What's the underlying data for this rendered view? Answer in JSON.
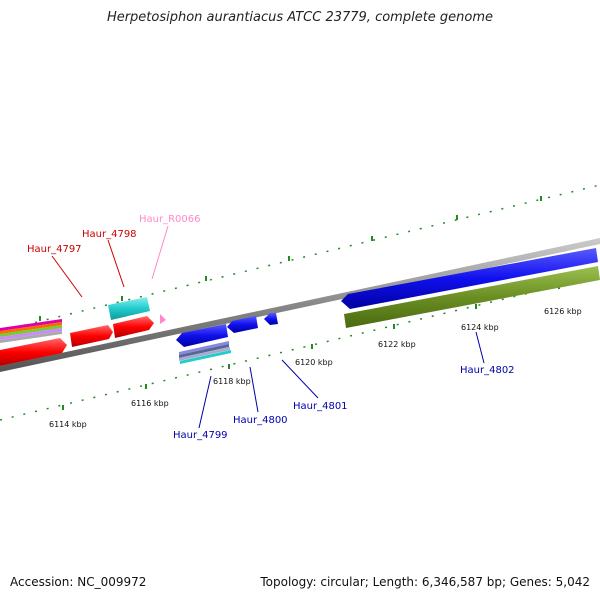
{
  "title": "Herpetosiphon aurantiacus ATCC 23779, complete genome",
  "footer": {
    "accession": "Accession: NC_009972",
    "topology": "Topology: circular; Length: 6,346,587 bp; Genes: 5,042"
  },
  "scale_labels": [
    "6114 kbp",
    "6116 kbp",
    "6118 kbp",
    "6120 kbp",
    "6122 kbp",
    "6124 kbp",
    "6126 kbp"
  ],
  "genes": {
    "haur_4797": "Haur_4797",
    "haur_4798": "Haur_4798",
    "haur_r0066": "Haur_R0066",
    "haur_4799": "Haur_4799",
    "haur_4800": "Haur_4800",
    "haur_4801": "Haur_4801",
    "haur_4802": "Haur_4802"
  },
  "colors": {
    "red_gene": "#ff0000",
    "cyan_gene": "#22cccc",
    "blue_gene": "#1010ee",
    "olive_gene": "#6b8e23",
    "rna_gene": "#ff88cc",
    "tick": "#228b22",
    "backbone": "#888888"
  }
}
